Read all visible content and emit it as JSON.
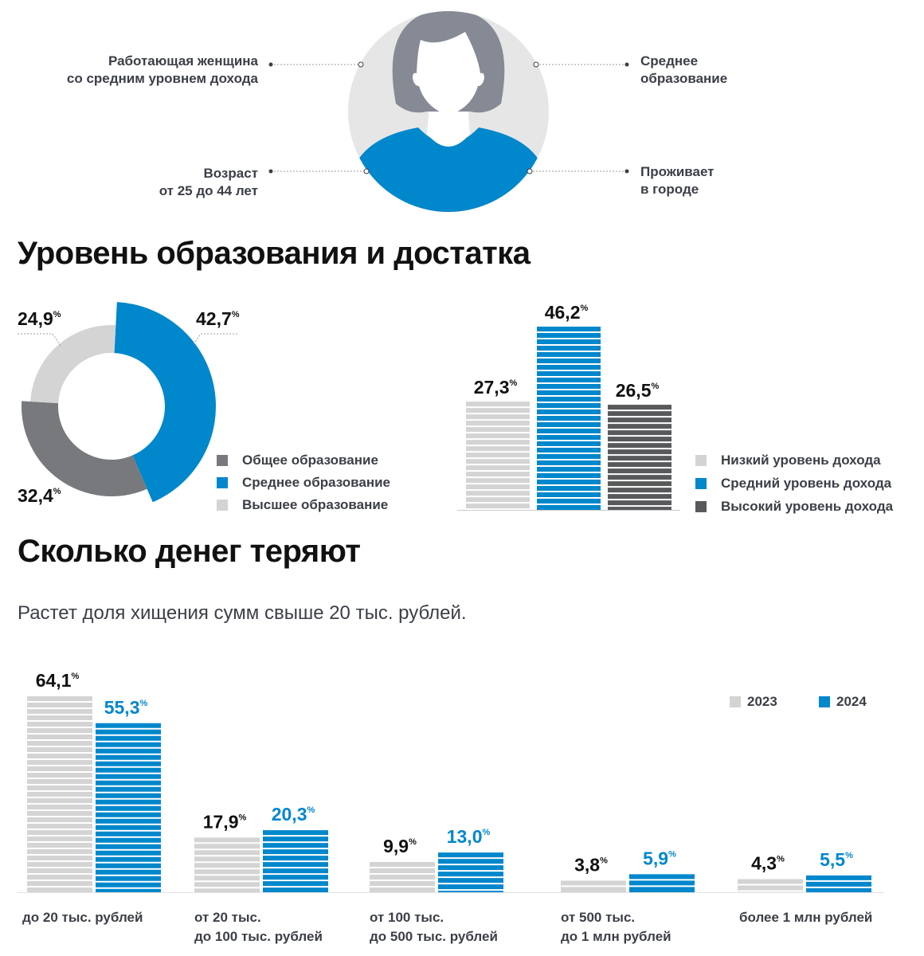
{
  "persona": {
    "traits": {
      "top_left": "Работающая женщина\nсо средним уровнем дохода",
      "bottom_left": "Возраст\nот 25 до 44 лет",
      "top_right": "Среднее\nобразование",
      "bottom_right": "Проживает\nв городе"
    },
    "colors": {
      "circle": "#e6e6e7",
      "hair": "#868a94",
      "shirt": "#0087cc"
    }
  },
  "section1_title": "Уровень образования и достатка",
  "section2_title": "Сколько денег теряют",
  "section2_subtitle": "Растет доля хищения сумм свыше 20 тыс. рублей.",
  "percent_sign": "%",
  "chart_data": [
    {
      "type": "pie",
      "title": "Уровень образования",
      "labels": [
        "Общее образование",
        "Среднее образование",
        "Высшее образование"
      ],
      "values": [
        32.4,
        42.7,
        24.9
      ],
      "display": [
        "32,4",
        "42,7",
        "24,9"
      ],
      "colors": [
        "#78797c",
        "#0087cc",
        "#d4d4d5"
      ],
      "legend_position": "bottom-right"
    },
    {
      "type": "bar",
      "title": "Уровень достатка",
      "categories": [
        "Низкий уровень дохода",
        "Средний уровень дохода",
        "Высокий уровень дохода"
      ],
      "values": [
        27.3,
        46.2,
        26.5
      ],
      "display": [
        "27,3",
        "46,2",
        "26,5"
      ],
      "colors": [
        "#d4d4d5",
        "#0087cc",
        "#58595b"
      ],
      "legend_position": "right"
    },
    {
      "type": "bar",
      "title": "Сколько денег теряют",
      "categories": [
        "до 20 тыс. рублей",
        "от 20 тыс.\nдо 100 тыс. рублей",
        "от 100 тыс.\nдо 500 тыс. рублей",
        "от 500 тыс.\nдо 1 млн рублей",
        "более 1 млн рублей"
      ],
      "series": [
        {
          "name": "2023",
          "values": [
            64.1,
            17.9,
            9.9,
            3.8,
            4.3
          ],
          "display": [
            "64,1",
            "17,9",
            "9,9",
            "3,8",
            "4,3"
          ],
          "color": "#d4d4d5",
          "label_color": "#111111"
        },
        {
          "name": "2024",
          "values": [
            55.3,
            20.3,
            13.0,
            5.9,
            5.5
          ],
          "display": [
            "55,3",
            "20,3",
            "13,0",
            "5,9",
            "5,5"
          ],
          "color": "#0087cc",
          "label_color": "#0087cc"
        }
      ],
      "legend_position": "top-right"
    }
  ]
}
